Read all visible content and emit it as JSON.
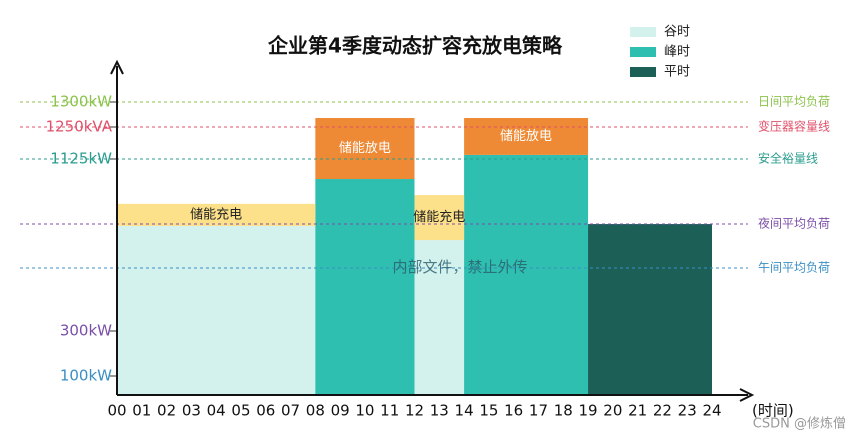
{
  "chart_data": {
    "type": "step-stacked",
    "title": "企业第4季度动态扩容充放电策略",
    "x_label": "(时间)",
    "xlim": [
      0,
      24
    ],
    "xticks": [
      {
        "value": 0,
        "label": "00"
      },
      {
        "value": 1,
        "label": "01"
      },
      {
        "value": 2,
        "label": "02"
      },
      {
        "value": 3,
        "label": "03"
      },
      {
        "value": 4,
        "label": "04"
      },
      {
        "value": 5,
        "label": "05"
      },
      {
        "value": 6,
        "label": "06"
      },
      {
        "value": 7,
        "label": "07"
      },
      {
        "value": 8,
        "label": "08"
      },
      {
        "value": 9,
        "label": "09"
      },
      10,
      11,
      12,
      13,
      14,
      15,
      16,
      17,
      18,
      19,
      20,
      21,
      22,
      23,
      24
    ],
    "ylim": [
      0,
      1400
    ],
    "yticks": [
      {
        "value": 100,
        "label": "100kW"
      },
      {
        "value": 300,
        "label": "300kW"
      },
      {
        "value": 1125,
        "label": "1125kW"
      },
      {
        "value": 1250,
        "label": "1250kVA"
      },
      {
        "value": 1300,
        "label": "1300kW"
      }
    ],
    "ytick_colors": [
      "#3b8fc4",
      "#7b4fa8",
      "#2a9d8f",
      "#e0506a",
      "#8bc34a"
    ],
    "legend": [
      {
        "name": "谷时",
        "color": "#d3f2ee"
      },
      {
        "name": "峰时",
        "color": "#2fbfb0"
      },
      {
        "name": "平时",
        "color": "#1b5f57"
      }
    ],
    "load": {
      "x_start": [
        0,
        8,
        12,
        14,
        19
      ],
      "x_end": [
        8,
        12,
        14,
        19,
        24
      ],
      "values": [
        804,
        1029,
        736,
        1141,
        813
      ],
      "colors": [
        "#d3f2ee",
        "#2fbfb0",
        "#d3f2ee",
        "#2fbfb0",
        "#1b5f57"
      ]
    },
    "storage": {
      "x_start": [
        0,
        8,
        12,
        14
      ],
      "x_end": [
        8,
        12,
        14,
        19
      ],
      "values": [
        106,
        239,
        216,
        127
      ],
      "labels": [
        "储能充电",
        "储能放电",
        "储能充电",
        "储能放电"
      ],
      "colors": [
        "#fce08a",
        "#ee8a35",
        "#fce08a",
        "#ee8a35"
      ]
    },
    "reference_lines": [
      {
        "name": "日间平均负荷",
        "value": 1300,
        "color": "#8bc34a"
      },
      {
        "name": "变压器容量线",
        "value": 1250,
        "color": "#e0506a"
      },
      {
        "name": "安全裕量线",
        "value": 1125,
        "color": "#2a9d8f"
      },
      {
        "name": "夜间平均负荷",
        "value": 813,
        "color": "#7b4fa8"
      },
      {
        "name": "午间平均负荷",
        "value": 602,
        "color": "#3b8fc4"
      }
    ],
    "watermark": "内部文件，禁止外传",
    "credit": "CSDN @修炼僧"
  }
}
